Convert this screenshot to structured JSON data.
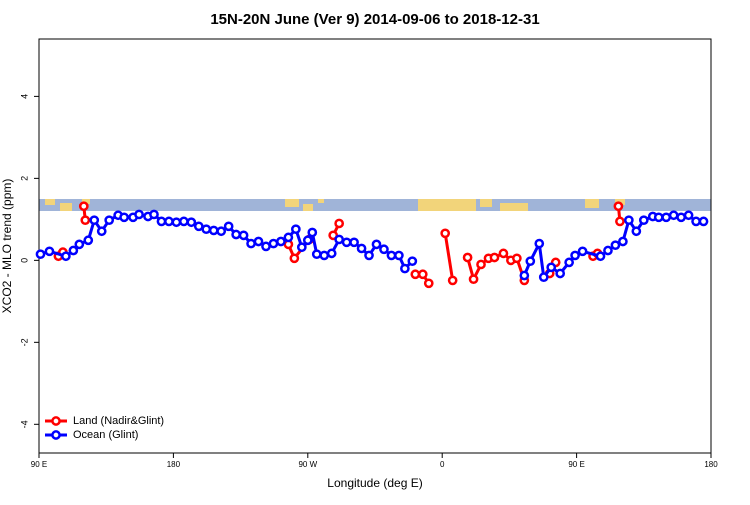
{
  "chart_data": {
    "type": "line",
    "title": "15N-20N June (Ver 9)   2014-09-06 to 2018-12-31",
    "xlabel": "Longitude (deg E)",
    "ylabel": "XCO2 - MLO trend (ppm)",
    "xlim": [
      90,
      540
    ],
    "xticks": [
      {
        "value": 90,
        "label": "90 E"
      },
      {
        "value": 180,
        "label": "180"
      },
      {
        "value": 270,
        "label": "90 W"
      },
      {
        "value": 360,
        "label": "0"
      },
      {
        "value": 450,
        "label": "90 E"
      },
      {
        "value": 540,
        "label": "180"
      }
    ],
    "ylim": [
      -4.7,
      5.4
    ],
    "yticks": [
      -4,
      -2,
      0,
      2,
      4
    ],
    "grid": false,
    "legend": "bottomleft",
    "series": [
      {
        "name": "Land (Nadir&Glint)",
        "color": "#ff0000",
        "x": [
          103,
          106,
          113,
          120,
          121,
          190,
          257,
          261,
          271,
          279,
          287,
          291,
          316,
          342,
          347,
          351,
          356,
          362,
          367,
          372,
          377,
          381,
          386,
          391,
          395,
          401,
          406,
          410,
          415,
          423,
          432,
          436,
          448,
          461,
          464,
          471,
          478,
          479
        ],
        "values": [
          0.1,
          0.2,
          null,
          1.32,
          0.98,
          null,
          0.39,
          0.05,
          0.51,
          null,
          0.61,
          0.9,
          null,
          -0.34,
          -0.34,
          -0.56,
          null,
          0.66,
          -0.49,
          null,
          0.07,
          -0.46,
          -0.1,
          0.05,
          0.07,
          0.17,
          0,
          0.05,
          -0.49,
          null,
          -0.32,
          -0.05,
          null,
          0.1,
          0.17,
          null,
          1.32,
          0.95
        ]
      },
      {
        "name": "Ocean (Glint)",
        "color": "#0000ff",
        "x": [
          91,
          97,
          108,
          113,
          117,
          123,
          127,
          132,
          137,
          143,
          147,
          153,
          157,
          163,
          167,
          172,
          177,
          182,
          187,
          192,
          197,
          202,
          207,
          212,
          217,
          222,
          227,
          232,
          237,
          242,
          247,
          252,
          257,
          262,
          266,
          270,
          273,
          276,
          281,
          286,
          291,
          296,
          301,
          306,
          311,
          316,
          321,
          326,
          331,
          335,
          340,
          378,
          415,
          419,
          425,
          428,
          433,
          439,
          445,
          449,
          454,
          466,
          471,
          476,
          481,
          485,
          490,
          495,
          501,
          505,
          510,
          515,
          520,
          525,
          530,
          535
        ],
        "values": [
          0.15,
          0.22,
          0.1,
          0.24,
          0.39,
          0.49,
          0.98,
          0.71,
          0.98,
          1.1,
          1.05,
          1.05,
          1.12,
          1.07,
          1.12,
          0.95,
          0.95,
          0.93,
          0.95,
          0.93,
          0.83,
          0.76,
          0.73,
          0.71,
          0.83,
          0.63,
          0.61,
          0.41,
          0.46,
          0.34,
          0.41,
          0.46,
          0.56,
          0.76,
          0.32,
          0.49,
          0.68,
          0.15,
          0.12,
          0.17,
          0.51,
          0.44,
          0.44,
          0.29,
          0.12,
          0.39,
          0.27,
          0.12,
          0.12,
          -0.2,
          -0.02,
          null,
          -0.37,
          -0.02,
          0.41,
          -0.41,
          -0.17,
          -0.32,
          -0.05,
          0.12,
          0.22,
          0.1,
          0.24,
          0.37,
          0.46,
          0.98,
          0.71,
          0.98,
          1.07,
          1.05,
          1.05,
          1.1,
          1.05,
          1.1,
          0.95,
          0.95
        ]
      }
    ]
  }
}
